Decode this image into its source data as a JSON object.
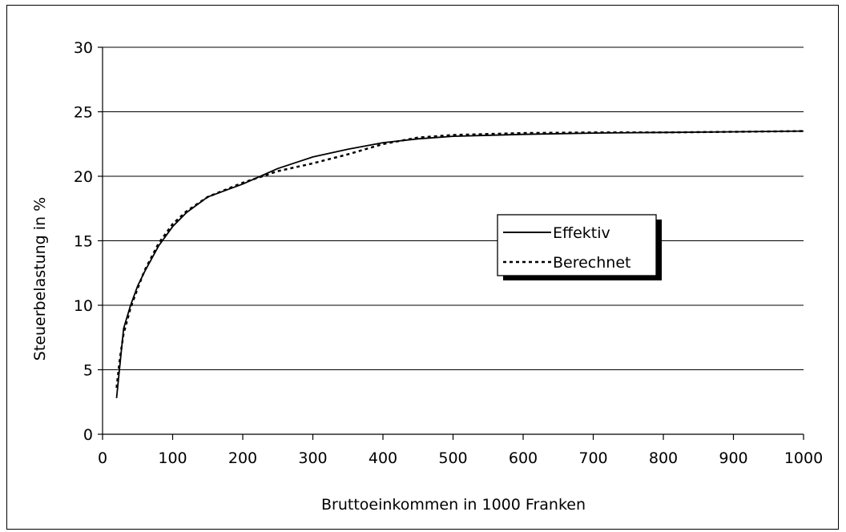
{
  "chart_data": {
    "type": "line",
    "xlabel": "Bruttoeinkommen in 1000 Franken",
    "ylabel": "Steuerbelastung in %",
    "xlim": [
      0,
      1000
    ],
    "ylim": [
      0,
      30
    ],
    "xticks": [
      0,
      100,
      200,
      300,
      400,
      500,
      600,
      700,
      800,
      900,
      1000
    ],
    "yticks": [
      0,
      5,
      10,
      15,
      20,
      25,
      30
    ],
    "grid": "horizontal",
    "legend_position": "right",
    "series": [
      {
        "name": "Effektiv",
        "style": "solid",
        "color": "#000000",
        "points": [
          [
            20,
            2.8
          ],
          [
            25,
            5.5
          ],
          [
            30,
            8.2
          ],
          [
            40,
            10.0
          ],
          [
            50,
            11.5
          ],
          [
            60,
            12.6
          ],
          [
            80,
            14.6
          ],
          [
            100,
            16.1
          ],
          [
            120,
            17.2
          ],
          [
            150,
            18.4
          ],
          [
            200,
            19.4
          ],
          [
            250,
            20.6
          ],
          [
            300,
            21.5
          ],
          [
            350,
            22.1
          ],
          [
            400,
            22.6
          ],
          [
            450,
            22.9
          ],
          [
            500,
            23.1
          ],
          [
            600,
            23.25
          ],
          [
            700,
            23.35
          ],
          [
            800,
            23.4
          ],
          [
            900,
            23.45
          ],
          [
            1000,
            23.5
          ]
        ]
      },
      {
        "name": "Berechnet",
        "style": "dotted",
        "color": "#000000",
        "points": [
          [
            20,
            3.6
          ],
          [
            25,
            6.0
          ],
          [
            30,
            7.8
          ],
          [
            40,
            9.8
          ],
          [
            50,
            11.3
          ],
          [
            60,
            12.7
          ],
          [
            80,
            14.8
          ],
          [
            100,
            16.3
          ],
          [
            120,
            17.3
          ],
          [
            150,
            18.4
          ],
          [
            200,
            19.5
          ],
          [
            250,
            20.4
          ],
          [
            300,
            21.0
          ],
          [
            350,
            21.7
          ],
          [
            400,
            22.5
          ],
          [
            450,
            23.0
          ],
          [
            500,
            23.2
          ],
          [
            600,
            23.35
          ],
          [
            700,
            23.4
          ],
          [
            800,
            23.4
          ],
          [
            900,
            23.45
          ],
          [
            1000,
            23.5
          ]
        ]
      }
    ]
  }
}
